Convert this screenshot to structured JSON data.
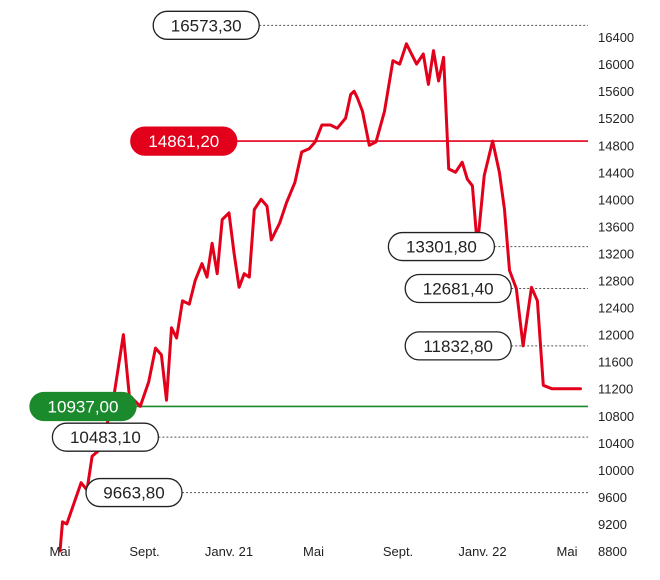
{
  "chart_data": {
    "type": "line",
    "title": "",
    "xlabel": "",
    "ylabel": "",
    "ylim": [
      8800,
      16800
    ],
    "y_ticks": [
      8800,
      9200,
      9600,
      10000,
      10400,
      10800,
      11200,
      11600,
      12000,
      12400,
      12800,
      13200,
      13600,
      14000,
      14400,
      14800,
      15200,
      15600,
      16000,
      16400
    ],
    "y_tick_labels": [
      "8800",
      "9200",
      "9600",
      "10000",
      "10400",
      "10800",
      "11200",
      "11600",
      "12000",
      "12400",
      "12800",
      "13200",
      "13600",
      "14000",
      "14400",
      "14800",
      "15200",
      "15600",
      "16000",
      "16400"
    ],
    "x_ticks": [
      {
        "label": "Mai",
        "t": 0.0
      },
      {
        "label": "Sept.",
        "t": 1.0
      },
      {
        "label": "Janv. 21",
        "t": 2.0
      },
      {
        "label": "Mai",
        "t": 3.0
      },
      {
        "label": "Sept.",
        "t": 4.0
      },
      {
        "label": "Janv. 22",
        "t": 5.0
      },
      {
        "label": "Mai",
        "t": 6.0
      }
    ],
    "grid": false,
    "line_color": "#e2001a",
    "series": [
      {
        "x": [
          0.0,
          0.03,
          0.08,
          0.25,
          0.32,
          0.38,
          0.47,
          0.62,
          0.75,
          0.82,
          0.95,
          1.05,
          1.13,
          1.2,
          1.26,
          1.32,
          1.38,
          1.45,
          1.53,
          1.6,
          1.68,
          1.74,
          1.8,
          1.86,
          1.92,
          2.0,
          2.06,
          2.12,
          2.18,
          2.24,
          2.3,
          2.38,
          2.45,
          2.5,
          2.6,
          2.68,
          2.78,
          2.86,
          2.95,
          3.02,
          3.1,
          3.2,
          3.28,
          3.38,
          3.44,
          3.48,
          3.52,
          3.58,
          3.66,
          3.74,
          3.84,
          3.94,
          4.02,
          4.1,
          4.22,
          4.3,
          4.36,
          4.42,
          4.48,
          4.54,
          4.6,
          4.68,
          4.76,
          4.82,
          4.88,
          4.94,
          5.02,
          5.12,
          5.2,
          5.26,
          5.32,
          5.4,
          5.48,
          5.58,
          5.65,
          5.72,
          5.82,
          5.9,
          5.98,
          6.06,
          6.16
        ],
        "values": [
          8800,
          9230,
          9200,
          9810,
          9700,
          10200,
          10300,
          10950,
          12000,
          11100,
          10940,
          11300,
          11800,
          11700,
          11030,
          12100,
          11950,
          12500,
          12450,
          12800,
          13050,
          12850,
          13350,
          12900,
          13700,
          13800,
          13200,
          12700,
          12900,
          12850,
          13850,
          14000,
          13900,
          13400,
          13650,
          13950,
          14250,
          14700,
          14750,
          14850,
          15100,
          15100,
          15050,
          15200,
          15550,
          15600,
          15500,
          15300,
          14800,
          14850,
          15300,
          16050,
          16000,
          16300,
          16000,
          16150,
          15700,
          16200,
          15750,
          16100,
          14450,
          14400,
          14550,
          14300,
          14200,
          13301.8,
          14350,
          14861.2,
          14400,
          13850,
          12950,
          12681.4,
          11832.8,
          12700,
          12500,
          11250,
          11200,
          11200,
          11200,
          11200,
          11200
        ],
        "name": ""
      }
    ],
    "reference_lines": [
      {
        "value": 16573.3,
        "label": "16573,30",
        "style": "dotted",
        "color": "#555555",
        "box": "white",
        "box_x": 0.22
      },
      {
        "value": 14861.2,
        "label": "14861,20",
        "style": "solid",
        "color": "#e2001a",
        "box": "red",
        "box_x": 0.18
      },
      {
        "value": 13301.8,
        "label": "13301,80",
        "style": "dotted",
        "color": "#555555",
        "box": "white",
        "box_x": 0.64
      },
      {
        "value": 12681.4,
        "label": "12681,40",
        "style": "dotted",
        "color": "#555555",
        "box": "white",
        "box_x": 0.67
      },
      {
        "value": 11832.8,
        "label": "11832,80",
        "style": "dotted",
        "color": "#555555",
        "box": "white",
        "box_x": 0.67
      },
      {
        "value": 10937.0,
        "label": "10937,00",
        "style": "solid",
        "color": "#1a8a2c",
        "box": "green",
        "box_x": 0.0
      },
      {
        "value": 10483.1,
        "label": "10483,10",
        "style": "dotted",
        "color": "#555555",
        "box": "white",
        "box_x": 0.04
      },
      {
        "value": 9663.8,
        "label": "9663,80",
        "style": "dotted",
        "color": "#555555",
        "box": "white",
        "box_x": 0.1
      }
    ]
  }
}
